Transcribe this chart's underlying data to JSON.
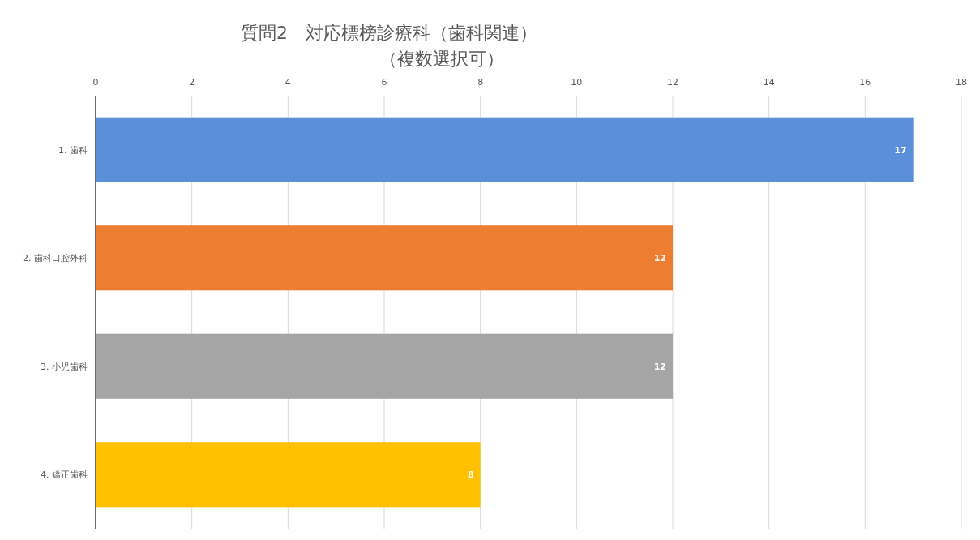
{
  "chart_data": {
    "type": "bar",
    "orientation": "horizontal",
    "title": "質問2　対応標榜診療科（歯科関連）",
    "subtitle": "（複数選択可）",
    "categories": [
      "1. 歯科",
      "2. 歯科口腔外科",
      "3. 小児歯科",
      "4. 矯正歯科"
    ],
    "values": [
      17,
      12,
      12,
      8
    ],
    "colors": [
      "#5b8fd9",
      "#ed7d31",
      "#a5a5a5",
      "#ffc000"
    ],
    "xlim": [
      0,
      18
    ],
    "xticks": [
      0,
      2,
      4,
      6,
      8,
      10,
      12,
      14,
      16,
      18
    ],
    "grid": "x",
    "data_labels": true
  }
}
